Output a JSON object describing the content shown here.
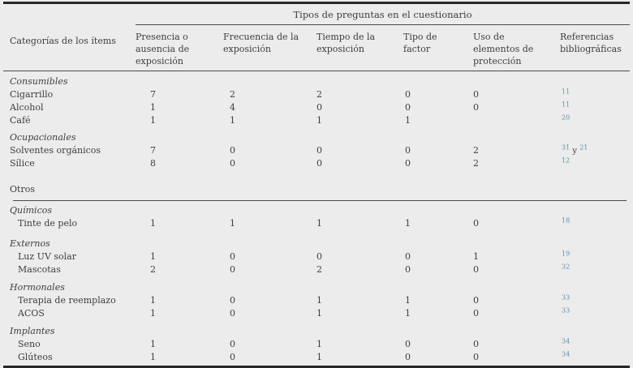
{
  "table": {
    "group_header": "Tipos de preguntas en el cuestionario",
    "col_headers": [
      "Categorías de los ítems",
      "Presencia o ausencia de exposición",
      "Frecuencia de la exposición",
      "Tiempo de la exposición",
      "Tipo de factor",
      "Uso de elementos de protección",
      "Referencias bibliográficas"
    ],
    "refs_joiner": "y",
    "colors": {
      "background": "#ececec",
      "text": "#3d3d3d",
      "rule": "#282828",
      "reference_link": "#5d92ad"
    },
    "sections": [
      {
        "label": "Consumibles",
        "style": "italic",
        "indent": false,
        "items": [
          {
            "name": "Cigarrillo",
            "values": [
              "7",
              "2",
              "2",
              "0",
              "0"
            ],
            "refs": [
              "11"
            ]
          },
          {
            "name": "Alcohol",
            "values": [
              "1",
              "4",
              "0",
              "0",
              "0"
            ],
            "refs": [
              "11"
            ]
          },
          {
            "name": "Café",
            "values": [
              "1",
              "1",
              "1",
              "1",
              ""
            ],
            "refs": [
              "20"
            ]
          }
        ]
      },
      {
        "label": "Ocupacionales",
        "style": "italic",
        "indent": false,
        "items": [
          {
            "name": "Solventes orgánicos",
            "values": [
              "7",
              "0",
              "0",
              "0",
              "2"
            ],
            "refs": [
              "31",
              "21"
            ]
          },
          {
            "name": "Sílice",
            "values": [
              "8",
              "0",
              "0",
              "0",
              "2"
            ],
            "refs": [
              "12"
            ]
          }
        ]
      },
      {
        "label": "Otros",
        "style": "normal",
        "indent": false,
        "rule_after": true,
        "items": []
      },
      {
        "label": "Químicos",
        "style": "italic",
        "indent": true,
        "items": [
          {
            "name": "Tinte de pelo",
            "values": [
              "1",
              "1",
              "1",
              "1",
              "0"
            ],
            "refs": [
              "18"
            ]
          }
        ]
      },
      {
        "label": "Externos",
        "style": "italic",
        "indent": true,
        "items": [
          {
            "name": "Luz UV solar",
            "values": [
              "1",
              "0",
              "0",
              "0",
              "1"
            ],
            "refs": [
              "19"
            ]
          },
          {
            "name": "Mascotas",
            "values": [
              "2",
              "0",
              "2",
              "0",
              "0"
            ],
            "refs": [
              "32"
            ]
          }
        ]
      },
      {
        "label": "Hormonales",
        "style": "italic",
        "indent": true,
        "items": [
          {
            "name": "Terapia de reemplazo",
            "values": [
              "1",
              "0",
              "1",
              "1",
              "0"
            ],
            "refs": [
              "33"
            ]
          },
          {
            "name": "ACOS",
            "values": [
              "1",
              "0",
              "1",
              "1",
              "0"
            ],
            "refs": [
              "33"
            ]
          }
        ]
      },
      {
        "label": "Implantes",
        "style": "italic",
        "indent": true,
        "items": [
          {
            "name": "Seno",
            "values": [
              "1",
              "0",
              "1",
              "0",
              "0"
            ],
            "refs": [
              "34"
            ]
          },
          {
            "name": "Glúteos",
            "values": [
              "1",
              "0",
              "1",
              "0",
              "0"
            ],
            "refs": [
              "34"
            ]
          }
        ]
      }
    ]
  }
}
